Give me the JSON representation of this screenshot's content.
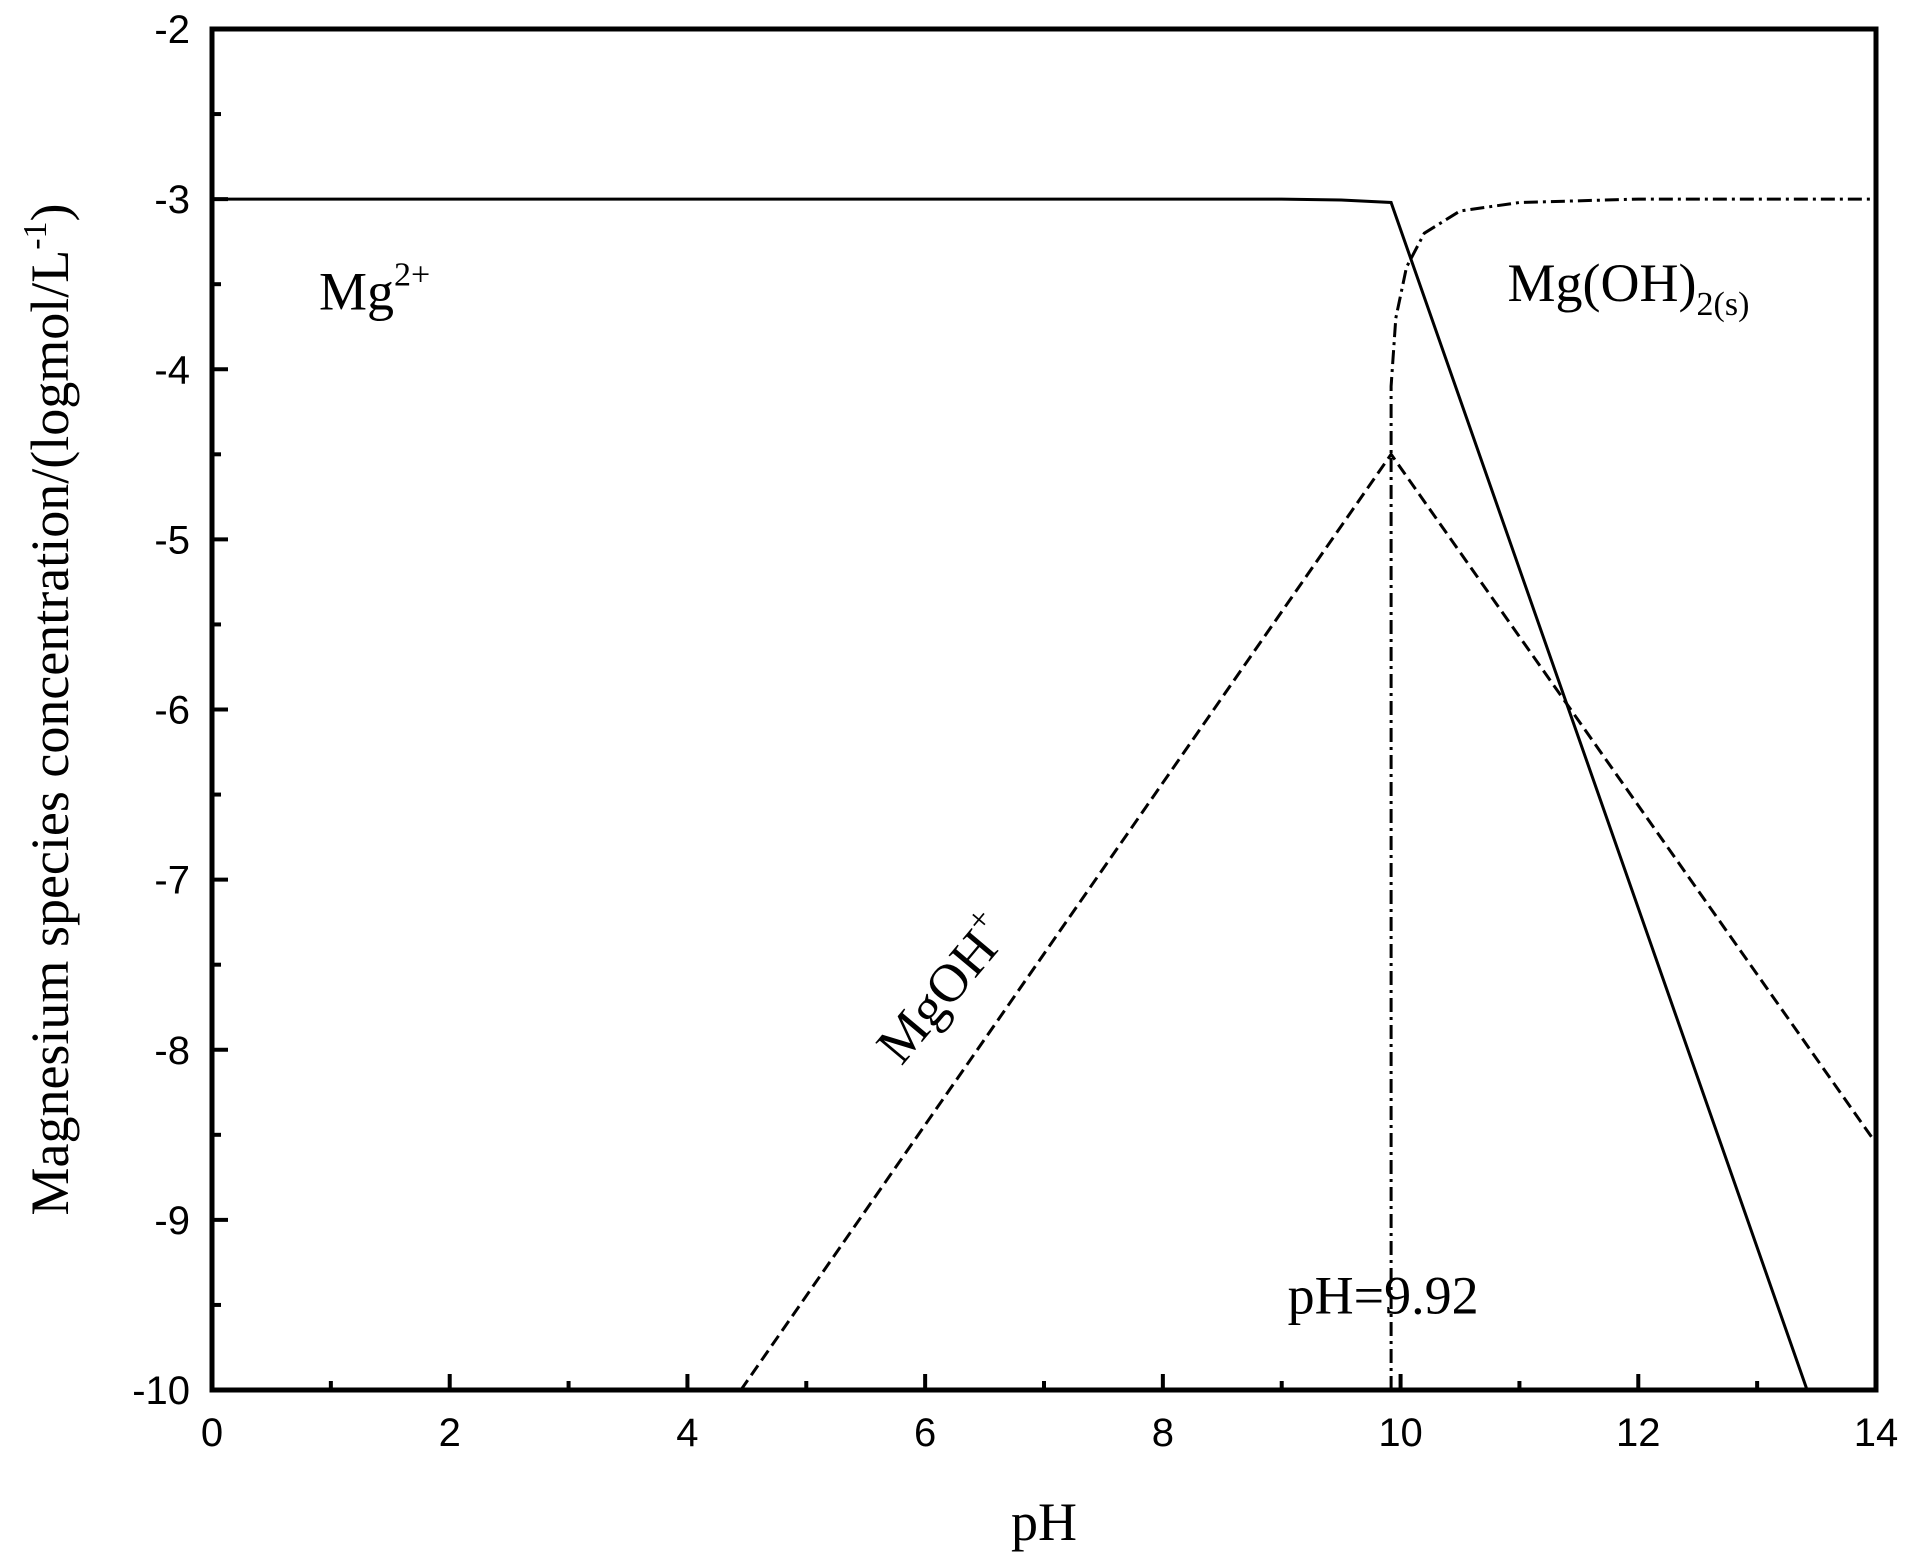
{
  "chart_data": {
    "type": "line",
    "title": "",
    "xlabel": "pH",
    "ylabel": "Magnesium species concentration/(logmol/L",
    "ylabel_sup": "-1",
    "ylabel_close": ")",
    "xlim": [
      0,
      14
    ],
    "ylim": [
      -10,
      -2
    ],
    "x_ticks": [
      0,
      2,
      4,
      6,
      8,
      10,
      12,
      14
    ],
    "x_tick_labels": [
      "0",
      "2",
      "4",
      "6",
      "8",
      "10",
      "12",
      "14"
    ],
    "y_ticks": [
      -2,
      -3,
      -4,
      -5,
      -6,
      -7,
      -8,
      -9,
      -10
    ],
    "y_tick_labels": [
      "-2",
      "-3",
      "-4",
      "-5",
      "-6",
      "-7",
      "-8",
      "-9",
      "-10"
    ],
    "grid": false,
    "series": [
      {
        "name": "Mg2+",
        "style": "solid",
        "points": [
          [
            0,
            -3.0
          ],
          [
            9.0,
            -3.0
          ],
          [
            9.5,
            -3.005
          ],
          [
            9.92,
            -3.02
          ],
          [
            13.42,
            -10.0
          ]
        ]
      },
      {
        "name": "MgOH+",
        "style": "dashed",
        "points": [
          [
            4.45,
            -10.0
          ],
          [
            9.92,
            -4.5
          ],
          [
            14.0,
            -8.55
          ]
        ]
      },
      {
        "name": "Mg(OH)2(s)",
        "style": "dashdot",
        "points": [
          [
            9.92,
            -10.0
          ],
          [
            9.92,
            -4.1
          ],
          [
            9.96,
            -3.7
          ],
          [
            10.05,
            -3.4
          ],
          [
            10.2,
            -3.2
          ],
          [
            10.5,
            -3.07
          ],
          [
            11.0,
            -3.02
          ],
          [
            12.0,
            -3.0
          ],
          [
            14.0,
            -3.0
          ]
        ]
      }
    ],
    "annotations": [
      {
        "id": "mg2",
        "text": "Mg",
        "sup": "2+",
        "x": 0.9,
        "y": -3.65
      },
      {
        "id": "mgoh2",
        "text": "Mg(OH)",
        "sub": "2(s)",
        "x": 10.9,
        "y": -3.6
      },
      {
        "id": "mgoh",
        "text": "MgOH",
        "sup": "+",
        "x": 5.8,
        "y": -8.1,
        "rotation": -50
      },
      {
        "id": "ph",
        "text": "pH=9.92",
        "x": 9.05,
        "y": -9.55
      }
    ]
  }
}
